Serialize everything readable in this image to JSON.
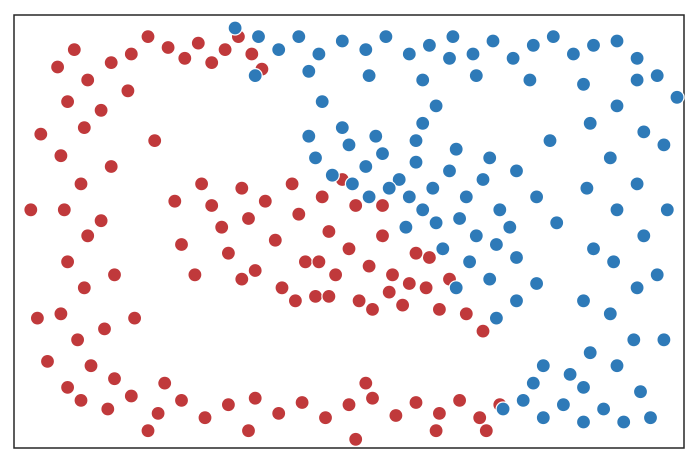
{
  "chart_data": {
    "type": "scatter",
    "title": "",
    "xlabel": "",
    "ylabel": "",
    "xlim": [
      -1.0,
      1.0
    ],
    "ylim": [
      -1.0,
      1.0
    ],
    "grid": false,
    "ticks": false,
    "legend": "none",
    "colors": {
      "red": "#c0393b",
      "blue": "#2e7ab8",
      "edge": "#ffffff"
    },
    "structure": {
      "outer_frame": {
        "x_range": [
          -0.87,
          0.87
        ],
        "y_range": [
          -0.85,
          0.9
        ],
        "thickness": 0.12
      },
      "inner_blob": {
        "center": [
          -0.02,
          0.02
        ],
        "radius_x": 0.45,
        "radius_y": 0.42
      }
    },
    "series": [
      {
        "color": "red",
        "points": [
          [
            -0.87,
            0.76
          ],
          [
            -0.82,
            0.84
          ],
          [
            -0.78,
            0.7
          ],
          [
            -0.71,
            0.78
          ],
          [
            -0.65,
            0.82
          ],
          [
            -0.6,
            0.9
          ],
          [
            -0.54,
            0.85
          ],
          [
            -0.49,
            0.8
          ],
          [
            -0.45,
            0.87
          ],
          [
            -0.41,
            0.78
          ],
          [
            -0.37,
            0.84
          ],
          [
            -0.33,
            0.9
          ],
          [
            -0.29,
            0.82
          ],
          [
            -0.26,
            0.75
          ],
          [
            -0.84,
            0.6
          ],
          [
            -0.79,
            0.48
          ],
          [
            -0.86,
            0.35
          ],
          [
            -0.8,
            0.22
          ],
          [
            -0.85,
            0.1
          ],
          [
            -0.78,
            -0.02
          ],
          [
            -0.84,
            -0.14
          ],
          [
            -0.79,
            -0.26
          ],
          [
            -0.86,
            -0.38
          ],
          [
            -0.81,
            -0.5
          ],
          [
            -0.77,
            -0.62
          ],
          [
            -0.84,
            -0.72
          ],
          [
            -0.74,
            0.56
          ],
          [
            -0.71,
            0.3
          ],
          [
            -0.74,
            0.05
          ],
          [
            -0.7,
            -0.2
          ],
          [
            -0.73,
            -0.45
          ],
          [
            -0.7,
            -0.68
          ],
          [
            -0.92,
            0.45
          ],
          [
            -0.95,
            0.1
          ],
          [
            -0.93,
            -0.4
          ],
          [
            -0.9,
            -0.6
          ],
          [
            -0.66,
            0.65
          ],
          [
            -0.64,
            -0.4
          ],
          [
            -0.8,
            -0.78
          ],
          [
            -0.72,
            -0.82
          ],
          [
            -0.65,
            -0.76
          ],
          [
            -0.57,
            -0.84
          ],
          [
            -0.5,
            -0.78
          ],
          [
            -0.43,
            -0.86
          ],
          [
            -0.36,
            -0.8
          ],
          [
            -0.28,
            -0.77
          ],
          [
            -0.21,
            -0.84
          ],
          [
            -0.14,
            -0.79
          ],
          [
            -0.07,
            -0.86
          ],
          [
            0.0,
            -0.8
          ],
          [
            0.07,
            -0.77
          ],
          [
            0.14,
            -0.85
          ],
          [
            0.2,
            -0.79
          ],
          [
            0.27,
            -0.84
          ],
          [
            0.33,
            -0.78
          ],
          [
            0.39,
            -0.86
          ],
          [
            0.45,
            -0.8
          ],
          [
            -0.6,
            -0.92
          ],
          [
            -0.3,
            -0.92
          ],
          [
            0.02,
            -0.96
          ],
          [
            0.26,
            -0.92
          ],
          [
            0.41,
            -0.92
          ],
          [
            -0.55,
            -0.7
          ],
          [
            0.05,
            -0.7
          ],
          [
            -0.41,
            0.12
          ],
          [
            -0.38,
            0.02
          ],
          [
            -0.36,
            -0.1
          ],
          [
            -0.32,
            0.2
          ],
          [
            -0.3,
            0.06
          ],
          [
            -0.28,
            -0.18
          ],
          [
            -0.25,
            0.14
          ],
          [
            -0.22,
            -0.04
          ],
          [
            -0.2,
            -0.26
          ],
          [
            -0.17,
            0.22
          ],
          [
            -0.15,
            0.08
          ],
          [
            -0.13,
            -0.14
          ],
          [
            -0.1,
            -0.3
          ],
          [
            -0.08,
            0.16
          ],
          [
            -0.06,
            0.0
          ],
          [
            -0.04,
            -0.2
          ],
          [
            -0.02,
            0.24
          ],
          [
            0.0,
            -0.08
          ],
          [
            0.03,
            -0.32
          ],
          [
            0.06,
            -0.16
          ],
          [
            0.1,
            -0.02
          ],
          [
            0.13,
            -0.2
          ],
          [
            0.16,
            -0.34
          ],
          [
            0.2,
            -0.1
          ],
          [
            0.23,
            -0.26
          ],
          [
            0.27,
            -0.36
          ],
          [
            -0.44,
            0.22
          ],
          [
            -0.46,
            -0.2
          ],
          [
            0.1,
            0.12
          ],
          [
            0.02,
            0.12
          ],
          [
            -0.09,
            -0.14
          ],
          [
            0.35,
            -0.38
          ],
          [
            0.3,
            -0.22
          ],
          [
            0.24,
            -0.12
          ],
          [
            0.18,
            -0.24
          ],
          [
            0.12,
            -0.28
          ],
          [
            0.4,
            -0.46
          ],
          [
            -0.52,
            0.14
          ],
          [
            -0.5,
            -0.06
          ],
          [
            -0.58,
            0.42
          ],
          [
            -0.32,
            -0.22
          ],
          [
            -0.16,
            -0.32
          ],
          [
            -0.06,
            -0.3
          ],
          [
            0.07,
            -0.36
          ]
        ]
      },
      {
        "color": "blue",
        "points": [
          [
            -0.34,
            0.94
          ],
          [
            -0.27,
            0.9
          ],
          [
            -0.21,
            0.84
          ],
          [
            -0.15,
            0.9
          ],
          [
            -0.09,
            0.82
          ],
          [
            -0.02,
            0.88
          ],
          [
            0.05,
            0.84
          ],
          [
            0.11,
            0.9
          ],
          [
            0.18,
            0.82
          ],
          [
            0.24,
            0.86
          ],
          [
            0.31,
            0.9
          ],
          [
            0.37,
            0.82
          ],
          [
            0.43,
            0.88
          ],
          [
            0.49,
            0.8
          ],
          [
            0.55,
            0.86
          ],
          [
            0.61,
            0.9
          ],
          [
            0.67,
            0.82
          ],
          [
            0.73,
            0.86
          ],
          [
            0.8,
            0.88
          ],
          [
            0.86,
            0.8
          ],
          [
            -0.28,
            0.72
          ],
          [
            -0.12,
            0.74
          ],
          [
            0.06,
            0.72
          ],
          [
            0.22,
            0.7
          ],
          [
            0.38,
            0.72
          ],
          [
            0.54,
            0.7
          ],
          [
            0.7,
            0.68
          ],
          [
            0.92,
            0.72
          ],
          [
            0.98,
            0.62
          ],
          [
            -0.08,
            0.6
          ],
          [
            0.26,
            0.58
          ],
          [
            0.3,
            0.8
          ],
          [
            0.86,
            0.7
          ],
          [
            0.8,
            0.58
          ],
          [
            0.88,
            0.46
          ],
          [
            0.78,
            0.34
          ],
          [
            0.86,
            0.22
          ],
          [
            0.8,
            0.1
          ],
          [
            0.88,
            -0.02
          ],
          [
            0.79,
            -0.14
          ],
          [
            0.86,
            -0.26
          ],
          [
            0.78,
            -0.38
          ],
          [
            0.85,
            -0.5
          ],
          [
            0.8,
            -0.62
          ],
          [
            0.87,
            -0.74
          ],
          [
            0.72,
            0.5
          ],
          [
            0.71,
            0.2
          ],
          [
            0.73,
            -0.08
          ],
          [
            0.7,
            -0.32
          ],
          [
            0.72,
            -0.56
          ],
          [
            0.7,
            -0.72
          ],
          [
            0.94,
            0.4
          ],
          [
            0.95,
            0.1
          ],
          [
            0.92,
            -0.2
          ],
          [
            0.94,
            -0.5
          ],
          [
            0.9,
            -0.86
          ],
          [
            0.6,
            0.42
          ],
          [
            0.58,
            -0.62
          ],
          [
            0.46,
            -0.82
          ],
          [
            0.52,
            -0.78
          ],
          [
            0.58,
            -0.86
          ],
          [
            0.64,
            -0.8
          ],
          [
            0.7,
            -0.88
          ],
          [
            0.76,
            -0.82
          ],
          [
            0.82,
            -0.88
          ],
          [
            0.55,
            -0.7
          ],
          [
            0.66,
            -0.66
          ],
          [
            -0.1,
            0.34
          ],
          [
            -0.05,
            0.26
          ],
          [
            0.0,
            0.4
          ],
          [
            0.05,
            0.3
          ],
          [
            0.1,
            0.36
          ],
          [
            0.15,
            0.24
          ],
          [
            0.2,
            0.32
          ],
          [
            0.25,
            0.2
          ],
          [
            0.3,
            0.28
          ],
          [
            0.35,
            0.16
          ],
          [
            0.4,
            0.24
          ],
          [
            0.45,
            0.1
          ],
          [
            0.48,
            0.02
          ],
          [
            0.44,
            -0.06
          ],
          [
            0.38,
            -0.02
          ],
          [
            0.33,
            0.06
          ],
          [
            0.28,
            -0.08
          ],
          [
            0.22,
            0.1
          ],
          [
            0.17,
            0.02
          ],
          [
            0.12,
            0.2
          ],
          [
            0.06,
            0.16
          ],
          [
            0.01,
            0.22
          ],
          [
            0.36,
            -0.14
          ],
          [
            0.42,
            -0.22
          ],
          [
            0.32,
            -0.26
          ],
          [
            0.5,
            -0.12
          ],
          [
            0.26,
            0.04
          ],
          [
            0.18,
            0.16
          ],
          [
            -0.12,
            0.44
          ],
          [
            -0.02,
            0.48
          ],
          [
            0.08,
            0.44
          ],
          [
            0.2,
            0.42
          ],
          [
            0.32,
            0.38
          ],
          [
            0.42,
            0.34
          ],
          [
            0.5,
            0.28
          ],
          [
            0.56,
            0.16
          ],
          [
            0.56,
            -0.24
          ],
          [
            0.5,
            -0.32
          ],
          [
            0.44,
            -0.4
          ],
          [
            0.62,
            0.04
          ],
          [
            0.22,
            0.5
          ]
        ]
      }
    ]
  }
}
